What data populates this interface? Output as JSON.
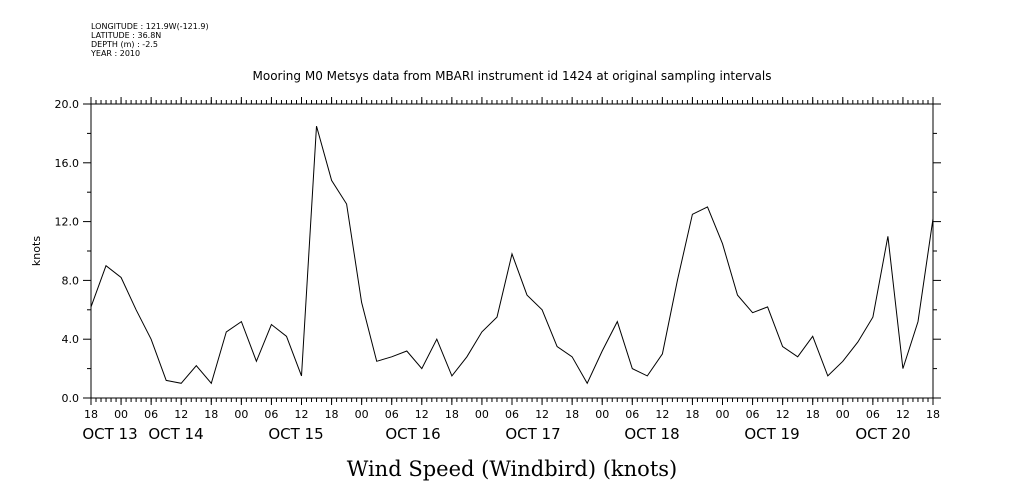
{
  "metadata": [
    "LONGITUDE : 121.9W(-121.9)",
    "LATITUDE : 36.8N",
    "DEPTH (m) : -2.5",
    "YEAR : 2010"
  ],
  "chart_data": {
    "type": "line",
    "title": "Mooring M0 Metsys data from MBARI instrument id 1424 at original sampling intervals",
    "xlabel": "Wind Speed (Windbird) (knots)",
    "ylabel": "knots",
    "ylim": [
      0,
      20
    ],
    "yticks": [
      "0.0",
      "4.0",
      "8.0",
      "12.0",
      "16.0",
      "20.0"
    ],
    "xlim_hours_label": "Oct 13 18:00 to Oct 20 18:00",
    "hour_ticks": [
      "18",
      "00",
      "06",
      "12",
      "18",
      "00",
      "06",
      "12",
      "18",
      "00",
      "06",
      "12",
      "18",
      "00",
      "06",
      "12",
      "18",
      "00",
      "06",
      "12",
      "18",
      "00",
      "06",
      "12",
      "18",
      "00",
      "06",
      "12",
      "18"
    ],
    "day_labels": [
      "OCT 13",
      "OCT 14",
      "OCT 15",
      "OCT 16",
      "OCT 17",
      "OCT 18",
      "OCT 19",
      "OCT 20"
    ],
    "series": [
      {
        "x_hours": [
          0,
          3,
          6,
          9,
          12,
          15,
          18,
          21,
          24,
          27,
          30,
          33,
          36,
          39,
          42,
          45,
          48,
          51,
          54,
          57,
          60,
          63,
          66,
          69,
          72,
          75,
          78,
          81,
          84,
          87,
          90,
          93,
          96,
          99,
          102,
          105,
          108,
          111,
          114,
          117,
          120,
          123,
          126,
          129,
          132,
          135,
          138,
          141,
          144,
          147,
          150,
          153,
          156,
          159,
          162,
          165,
          168
        ],
        "values": [
          6.2,
          9.0,
          8.2,
          6.0,
          4.0,
          1.2,
          1.0,
          2.2,
          1.0,
          4.5,
          5.2,
          2.5,
          5.0,
          4.2,
          1.5,
          18.5,
          14.8,
          13.2,
          6.5,
          2.5,
          2.8,
          3.2,
          2.0,
          4.0,
          1.5,
          2.8,
          4.5,
          5.5,
          9.8,
          7.0,
          6.0,
          3.5,
          2.8,
          1.0,
          3.2,
          5.2,
          2.0,
          1.5,
          3.0,
          8.0,
          12.5,
          13.0,
          10.5,
          7.0,
          5.8,
          6.2,
          3.5,
          2.8,
          4.2,
          1.5,
          2.5,
          3.8,
          5.5,
          11.0,
          2.0,
          5.2,
          12.2
        ]
      }
    ]
  }
}
